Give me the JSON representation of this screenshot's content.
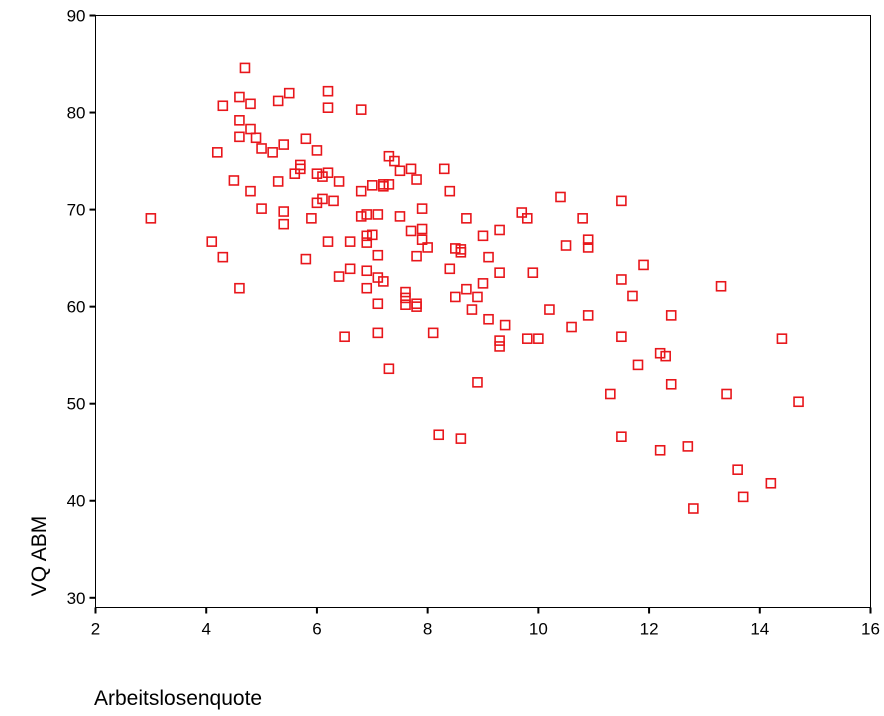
{
  "chart_data": {
    "type": "scatter",
    "xlabel": "Arbeitslosenquote",
    "ylabel": "VQ ABM",
    "xlim": [
      2,
      16
    ],
    "ylim": [
      29,
      90
    ],
    "xticks": [
      2,
      4,
      6,
      8,
      10,
      12,
      14,
      16
    ],
    "yticks": [
      30,
      40,
      50,
      60,
      70,
      80,
      90
    ],
    "grid": false,
    "legend": "none",
    "marker": "square-open",
    "marker_color": "#e8161b",
    "series": [
      {
        "points": [
          [
            3.0,
            69.1
          ],
          [
            4.1,
            66.7
          ],
          [
            4.2,
            75.9
          ],
          [
            4.3,
            80.7
          ],
          [
            4.3,
            65.1
          ],
          [
            4.5,
            73.0
          ],
          [
            4.6,
            81.6
          ],
          [
            4.6,
            79.2
          ],
          [
            4.6,
            77.5
          ],
          [
            4.6,
            61.9
          ],
          [
            4.7,
            84.6
          ],
          [
            4.8,
            80.9
          ],
          [
            4.8,
            78.3
          ],
          [
            4.8,
            71.9
          ],
          [
            4.9,
            77.4
          ],
          [
            5.0,
            76.3
          ],
          [
            5.0,
            70.1
          ],
          [
            5.2,
            75.9
          ],
          [
            5.3,
            81.2
          ],
          [
            5.3,
            72.9
          ],
          [
            5.4,
            76.7
          ],
          [
            5.4,
            69.8
          ],
          [
            5.4,
            68.5
          ],
          [
            5.5,
            82.0
          ],
          [
            5.6,
            73.7
          ],
          [
            5.7,
            74.6
          ],
          [
            5.7,
            74.2
          ],
          [
            5.8,
            77.3
          ],
          [
            5.8,
            64.9
          ],
          [
            5.9,
            69.1
          ],
          [
            6.0,
            76.1
          ],
          [
            6.0,
            73.7
          ],
          [
            6.0,
            70.7
          ],
          [
            6.1,
            73.4
          ],
          [
            6.1,
            71.1
          ],
          [
            6.2,
            82.2
          ],
          [
            6.2,
            80.5
          ],
          [
            6.2,
            73.8
          ],
          [
            6.2,
            66.7
          ],
          [
            6.3,
            70.9
          ],
          [
            6.4,
            72.9
          ],
          [
            6.4,
            63.1
          ],
          [
            6.5,
            56.9
          ],
          [
            6.6,
            66.7
          ],
          [
            6.6,
            63.9
          ],
          [
            6.8,
            80.3
          ],
          [
            6.8,
            71.9
          ],
          [
            6.8,
            69.3
          ],
          [
            6.9,
            69.5
          ],
          [
            6.9,
            67.3
          ],
          [
            6.9,
            66.6
          ],
          [
            6.9,
            63.7
          ],
          [
            6.9,
            61.9
          ],
          [
            7.0,
            72.5
          ],
          [
            7.0,
            67.4
          ],
          [
            7.1,
            69.5
          ],
          [
            7.1,
            65.3
          ],
          [
            7.1,
            63.0
          ],
          [
            7.1,
            60.3
          ],
          [
            7.1,
            57.3
          ],
          [
            7.2,
            72.6
          ],
          [
            7.2,
            72.4
          ],
          [
            7.2,
            62.6
          ],
          [
            7.3,
            75.5
          ],
          [
            7.3,
            72.6
          ],
          [
            7.3,
            53.6
          ],
          [
            7.4,
            75.0
          ],
          [
            7.5,
            74.0
          ],
          [
            7.5,
            69.3
          ],
          [
            7.6,
            61.5
          ],
          [
            7.6,
            60.9
          ],
          [
            7.6,
            60.2
          ],
          [
            7.7,
            74.2
          ],
          [
            7.7,
            67.8
          ],
          [
            7.8,
            73.1
          ],
          [
            7.8,
            65.2
          ],
          [
            7.8,
            60.3
          ],
          [
            7.8,
            60.0
          ],
          [
            7.9,
            70.1
          ],
          [
            7.9,
            68.0
          ],
          [
            7.9,
            66.9
          ],
          [
            8.0,
            66.1
          ],
          [
            8.1,
            57.3
          ],
          [
            8.2,
            46.8
          ],
          [
            8.3,
            74.2
          ],
          [
            8.4,
            71.9
          ],
          [
            8.4,
            63.9
          ],
          [
            8.5,
            66.0
          ],
          [
            8.5,
            61.0
          ],
          [
            8.6,
            65.9
          ],
          [
            8.6,
            65.6
          ],
          [
            8.6,
            46.4
          ],
          [
            8.7,
            69.1
          ],
          [
            8.7,
            61.8
          ],
          [
            8.8,
            59.7
          ],
          [
            8.9,
            61.0
          ],
          [
            8.9,
            52.2
          ],
          [
            9.0,
            67.3
          ],
          [
            9.0,
            62.4
          ],
          [
            9.1,
            65.1
          ],
          [
            9.1,
            58.7
          ],
          [
            9.3,
            67.9
          ],
          [
            9.3,
            63.5
          ],
          [
            9.3,
            56.5
          ],
          [
            9.3,
            55.9
          ],
          [
            9.4,
            58.1
          ],
          [
            9.7,
            69.7
          ],
          [
            9.8,
            69.1
          ],
          [
            9.8,
            56.7
          ],
          [
            9.9,
            63.5
          ],
          [
            10.0,
            56.7
          ],
          [
            10.2,
            59.7
          ],
          [
            10.4,
            71.3
          ],
          [
            10.5,
            66.3
          ],
          [
            10.6,
            57.9
          ],
          [
            10.8,
            69.1
          ],
          [
            10.9,
            66.9
          ],
          [
            10.9,
            66.1
          ],
          [
            10.9,
            59.1
          ],
          [
            11.3,
            51.0
          ],
          [
            11.5,
            70.9
          ],
          [
            11.5,
            62.8
          ],
          [
            11.5,
            56.9
          ],
          [
            11.5,
            46.6
          ],
          [
            11.7,
            61.1
          ],
          [
            11.8,
            54.0
          ],
          [
            11.9,
            64.3
          ],
          [
            12.2,
            55.2
          ],
          [
            12.2,
            45.2
          ],
          [
            12.3,
            54.9
          ],
          [
            12.4,
            59.1
          ],
          [
            12.4,
            52.0
          ],
          [
            12.7,
            45.6
          ],
          [
            12.8,
            39.2
          ],
          [
            13.3,
            62.1
          ],
          [
            13.4,
            51.0
          ],
          [
            13.6,
            43.2
          ],
          [
            13.7,
            40.4
          ],
          [
            14.2,
            41.8
          ],
          [
            14.4,
            56.7
          ],
          [
            14.7,
            50.2
          ]
        ]
      }
    ]
  }
}
